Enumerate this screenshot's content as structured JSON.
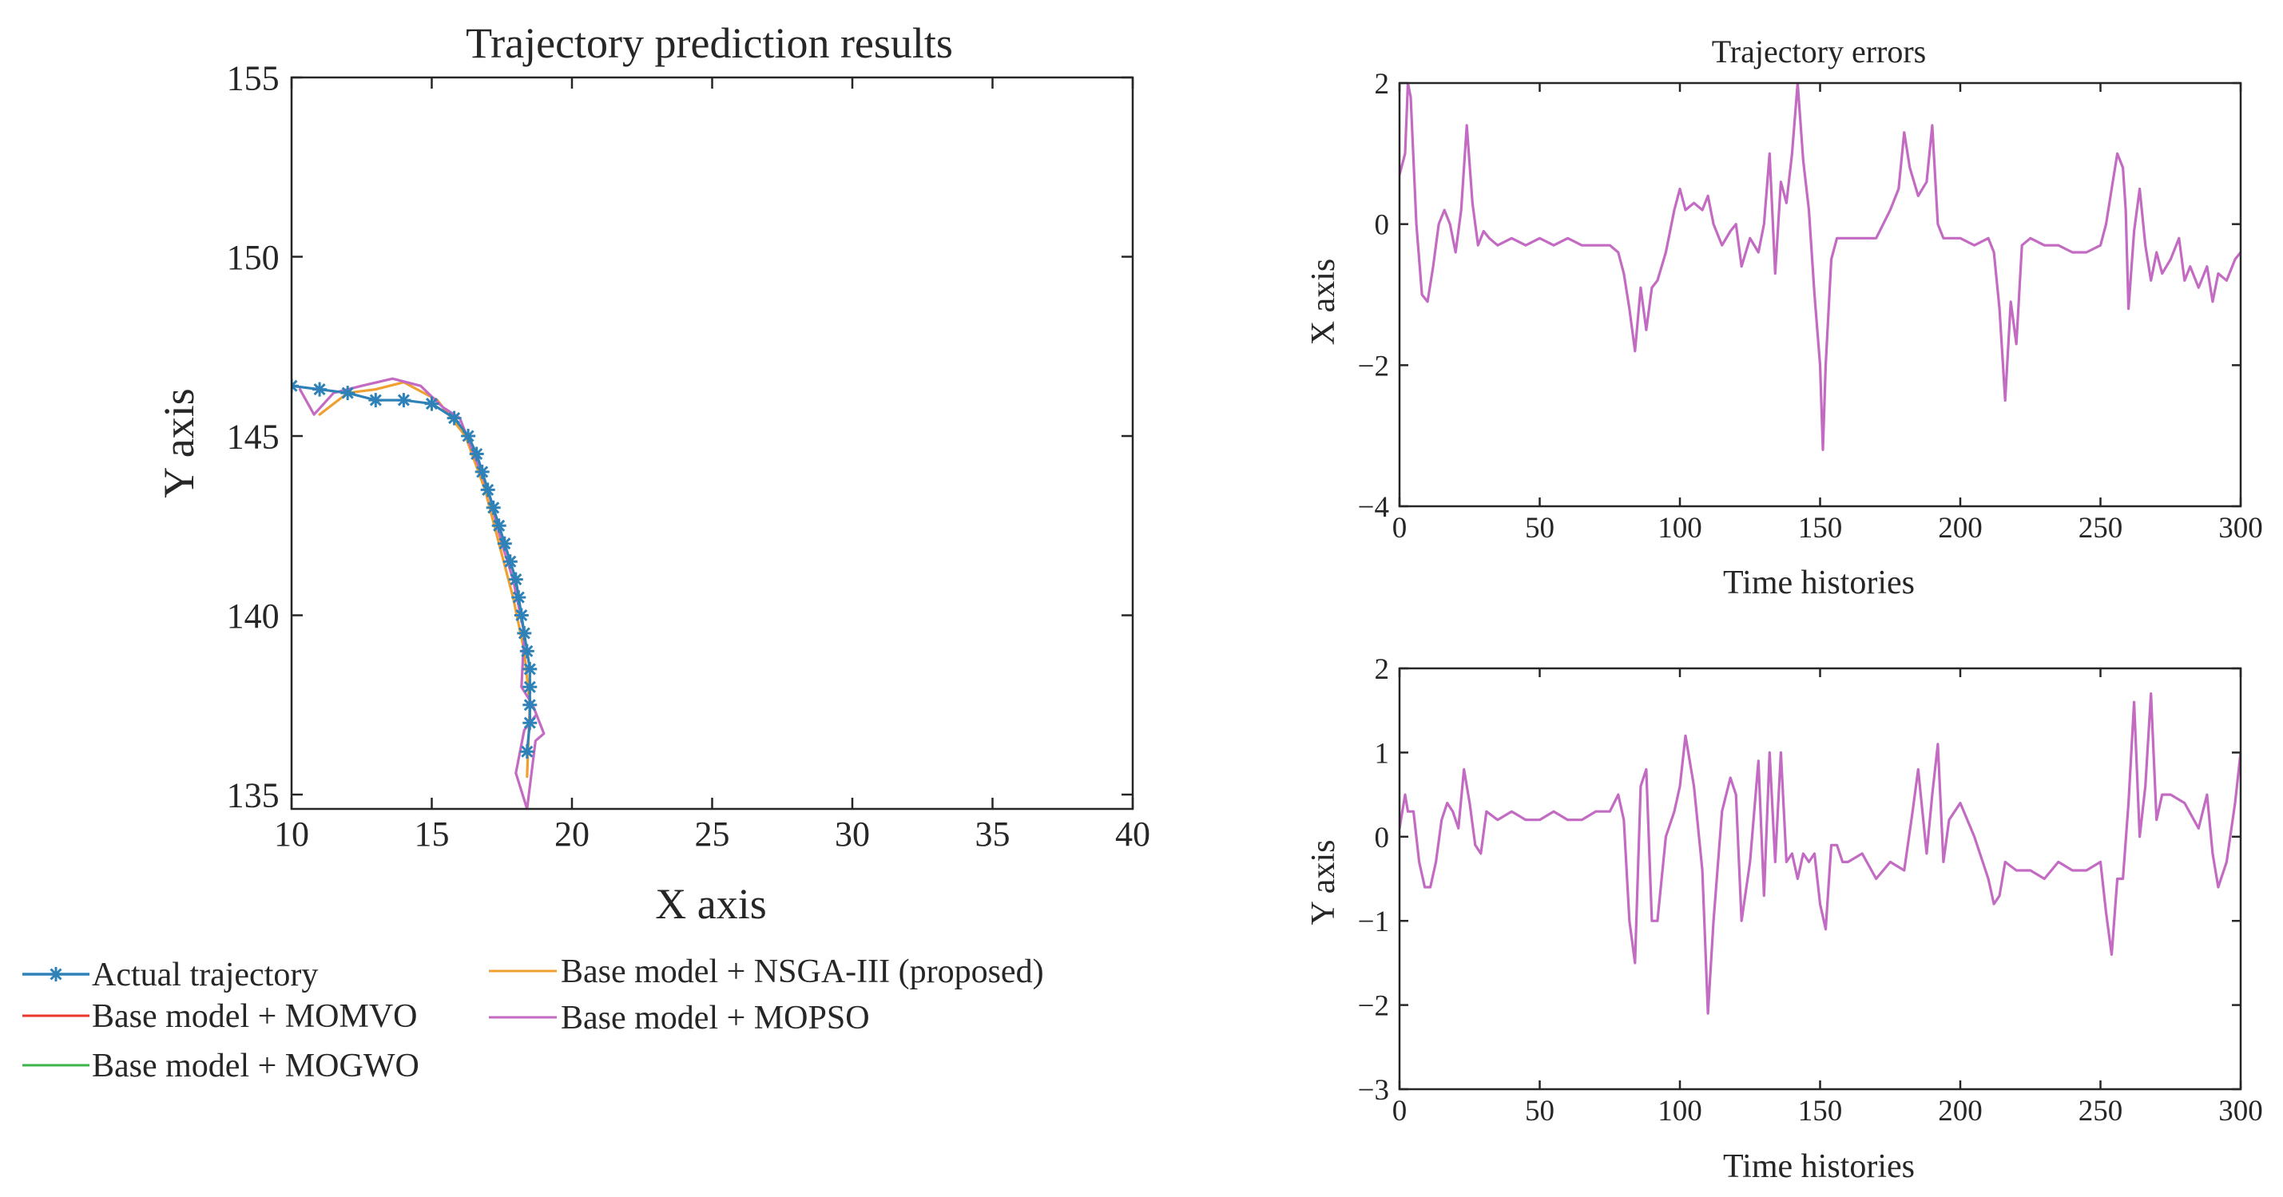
{
  "chart_data": [
    {
      "type": "line",
      "title": "Trajectory prediction results",
      "xlabel": "X axis",
      "ylabel": "Y axis",
      "xlim": [
        10,
        40
      ],
      "ylim": [
        134.6,
        155
      ],
      "xticks": [
        10,
        15,
        20,
        25,
        30,
        35,
        40
      ],
      "yticks": [
        135,
        140,
        145,
        150,
        155
      ],
      "grid": false,
      "legend_position": "below",
      "series": [
        {
          "name": "Actual trajectory",
          "color": "#2f82b8",
          "marker": "asterisk",
          "x": [
            10.0,
            11.0,
            12.0,
            13.0,
            14.0,
            15.0,
            15.8,
            16.3,
            16.6,
            16.8,
            17.0,
            17.2,
            17.4,
            17.6,
            17.8,
            18.0,
            18.1,
            18.2,
            18.3,
            18.4,
            18.5,
            18.5,
            18.5,
            18.5,
            18.4
          ],
          "y": [
            146.4,
            146.3,
            146.2,
            146.0,
            146.0,
            145.9,
            145.5,
            145.0,
            144.5,
            144.0,
            143.5,
            143.0,
            142.5,
            142.0,
            141.5,
            141.0,
            140.5,
            140.0,
            139.5,
            139.0,
            138.5,
            138.0,
            137.5,
            137.0,
            136.2
          ]
        },
        {
          "name": "Base model + MOMVO",
          "color": "#e8372d",
          "x": [],
          "y": []
        },
        {
          "name": "Base model + MOGWO",
          "color": "#3cb44b",
          "x": [],
          "y": []
        },
        {
          "name": "Base model + NSGA-III (proposed)",
          "color": "#f0a030",
          "x": [
            11.0,
            12.0,
            13.0,
            14.0,
            15.2,
            16.2,
            16.9,
            17.4,
            17.9,
            18.3,
            18.5,
            18.4
          ],
          "y": [
            145.6,
            146.2,
            146.3,
            146.5,
            146.0,
            145.0,
            143.5,
            142.0,
            140.5,
            139.0,
            137.5,
            135.5
          ]
        },
        {
          "name": "Base model + MOPSO",
          "color": "#c36ac2",
          "x": [
            10.3,
            10.8,
            11.5,
            12.5,
            13.6,
            14.6,
            15.4,
            16.0,
            16.6,
            17.0,
            17.5,
            17.9,
            18.3,
            18.2,
            18.6,
            19.0,
            18.7,
            18.4,
            18.0,
            18.3,
            18.7
          ],
          "y": [
            146.3,
            145.6,
            146.2,
            146.4,
            146.6,
            146.4,
            145.8,
            145.5,
            144.3,
            143.5,
            142.0,
            141.0,
            139.5,
            138.0,
            137.5,
            136.7,
            136.5,
            134.6,
            135.6,
            136.8,
            137.2
          ]
        }
      ]
    },
    {
      "type": "line",
      "title": "Trajectory errors",
      "xlabel": "Time histories",
      "ylabel": "X axis",
      "xlim": [
        0,
        300
      ],
      "ylim": [
        -4,
        2
      ],
      "xticks": [
        0,
        50,
        100,
        150,
        200,
        250,
        300
      ],
      "yticks": [
        -4,
        -2,
        0,
        2
      ],
      "grid": false,
      "series": [
        {
          "name": "Base model + MOPSO",
          "color": "#c36ac2",
          "x": [
            0,
            2,
            3,
            4,
            6,
            8,
            10,
            12,
            14,
            16,
            18,
            20,
            22,
            24,
            26,
            28,
            30,
            32,
            35,
            40,
            45,
            50,
            55,
            60,
            65,
            70,
            75,
            78,
            80,
            82,
            84,
            86,
            88,
            90,
            92,
            95,
            98,
            100,
            102,
            105,
            108,
            110,
            112,
            115,
            118,
            120,
            122,
            125,
            128,
            130,
            132,
            134,
            136,
            138,
            140,
            142,
            144,
            146,
            148,
            150,
            151,
            152,
            154,
            156,
            158,
            160,
            165,
            170,
            175,
            178,
            180,
            182,
            185,
            188,
            190,
            192,
            194,
            196,
            198,
            200,
            205,
            210,
            212,
            214,
            216,
            218,
            220,
            222,
            225,
            230,
            235,
            240,
            245,
            250,
            252,
            254,
            256,
            258,
            259,
            260,
            262,
            264,
            266,
            268,
            270,
            272,
            275,
            278,
            280,
            282,
            285,
            288,
            290,
            292,
            295,
            298,
            300
          ],
          "y": [
            0.7,
            1.0,
            2.0,
            1.8,
            0.0,
            -1.0,
            -1.1,
            -0.6,
            0.0,
            0.2,
            0.0,
            -0.4,
            0.2,
            1.4,
            0.3,
            -0.3,
            -0.1,
            -0.2,
            -0.3,
            -0.2,
            -0.3,
            -0.2,
            -0.3,
            -0.2,
            -0.3,
            -0.3,
            -0.3,
            -0.4,
            -0.7,
            -1.2,
            -1.8,
            -0.9,
            -1.5,
            -0.9,
            -0.8,
            -0.4,
            0.2,
            0.5,
            0.2,
            0.3,
            0.2,
            0.4,
            0.0,
            -0.3,
            -0.1,
            0.0,
            -0.6,
            -0.2,
            -0.4,
            0.0,
            1.0,
            -0.7,
            0.6,
            0.3,
            1.0,
            2.0,
            0.9,
            0.2,
            -1.0,
            -2.0,
            -3.2,
            -2.0,
            -0.5,
            -0.2,
            -0.2,
            -0.2,
            -0.2,
            -0.2,
            0.2,
            0.5,
            1.3,
            0.8,
            0.4,
            0.6,
            1.4,
            0.0,
            -0.2,
            -0.2,
            -0.2,
            -0.2,
            -0.3,
            -0.2,
            -0.4,
            -1.2,
            -2.5,
            -1.1,
            -1.7,
            -0.3,
            -0.2,
            -0.3,
            -0.3,
            -0.4,
            -0.4,
            -0.3,
            0.0,
            0.5,
            1.0,
            0.8,
            0.2,
            -1.2,
            -0.1,
            0.5,
            -0.3,
            -0.8,
            -0.4,
            -0.7,
            -0.5,
            -0.2,
            -0.8,
            -0.6,
            -0.9,
            -0.6,
            -1.1,
            -0.7,
            -0.8,
            -0.5,
            -0.4
          ]
        }
      ]
    },
    {
      "type": "line",
      "title": "",
      "xlabel": "Time histories",
      "ylabel": "Y axis",
      "xlim": [
        0,
        300
      ],
      "ylim": [
        -3,
        2
      ],
      "xticks": [
        0,
        50,
        100,
        150,
        200,
        250,
        300
      ],
      "yticks": [
        -3,
        -2,
        -1,
        0,
        1,
        2
      ],
      "grid": false,
      "series": [
        {
          "name": "Base model + MOPSO",
          "color": "#c36ac2",
          "x": [
            0,
            2,
            3,
            5,
            7,
            9,
            11,
            13,
            15,
            17,
            19,
            21,
            23,
            25,
            27,
            29,
            31,
            35,
            40,
            45,
            50,
            55,
            60,
            65,
            70,
            75,
            78,
            80,
            82,
            84,
            86,
            88,
            90,
            92,
            95,
            98,
            100,
            102,
            105,
            108,
            110,
            112,
            115,
            118,
            120,
            122,
            125,
            128,
            130,
            132,
            134,
            136,
            138,
            140,
            142,
            144,
            146,
            148,
            150,
            152,
            154,
            156,
            158,
            160,
            165,
            170,
            175,
            180,
            183,
            185,
            188,
            190,
            192,
            194,
            196,
            200,
            205,
            210,
            212,
            214,
            216,
            220,
            225,
            230,
            235,
            240,
            245,
            250,
            252,
            254,
            256,
            258,
            260,
            262,
            264,
            266,
            268,
            270,
            272,
            275,
            280,
            285,
            288,
            290,
            292,
            295,
            298,
            300
          ],
          "y": [
            0.1,
            0.5,
            0.3,
            0.3,
            -0.3,
            -0.6,
            -0.6,
            -0.3,
            0.2,
            0.4,
            0.3,
            0.1,
            0.8,
            0.4,
            -0.1,
            -0.2,
            0.3,
            0.2,
            0.3,
            0.2,
            0.2,
            0.3,
            0.2,
            0.2,
            0.3,
            0.3,
            0.5,
            0.2,
            -1.0,
            -1.5,
            0.6,
            0.8,
            -1.0,
            -1.0,
            0.0,
            0.3,
            0.6,
            1.2,
            0.6,
            -0.4,
            -2.1,
            -1.0,
            0.3,
            0.7,
            0.5,
            -1.0,
            -0.3,
            0.9,
            -0.7,
            1.0,
            -0.3,
            1.0,
            -0.3,
            -0.2,
            -0.5,
            -0.2,
            -0.3,
            -0.2,
            -0.8,
            -1.1,
            -0.1,
            -0.1,
            -0.3,
            -0.3,
            -0.2,
            -0.5,
            -0.3,
            -0.4,
            0.3,
            0.8,
            -0.2,
            0.5,
            1.1,
            -0.3,
            0.2,
            0.4,
            0.0,
            -0.5,
            -0.8,
            -0.7,
            -0.3,
            -0.4,
            -0.4,
            -0.5,
            -0.3,
            -0.4,
            -0.4,
            -0.3,
            -0.9,
            -1.4,
            -0.5,
            -0.5,
            0.4,
            1.6,
            0.0,
            0.6,
            1.7,
            0.2,
            0.5,
            0.5,
            0.4,
            0.1,
            0.5,
            -0.2,
            -0.6,
            -0.3,
            0.4,
            1.0
          ]
        }
      ]
    }
  ]
}
